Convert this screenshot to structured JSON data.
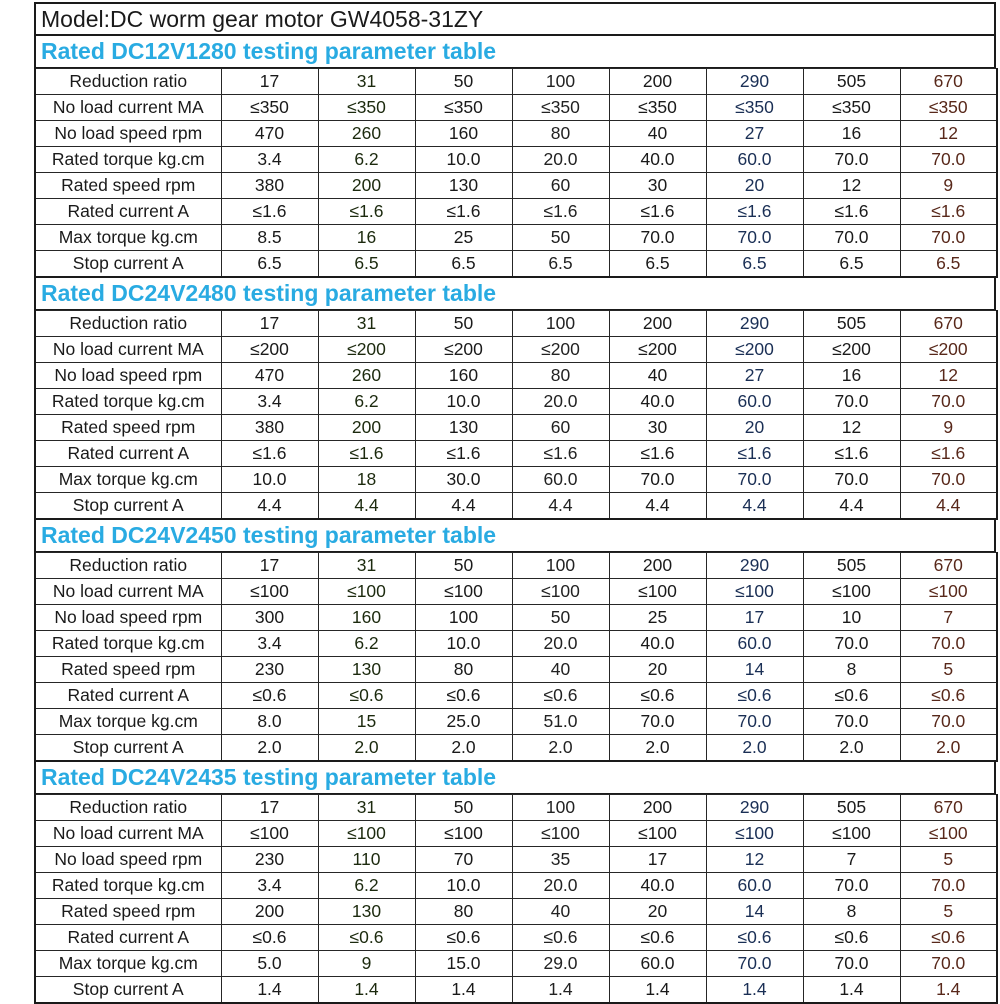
{
  "title": "Model:DC worm gear motor GW4058-31ZY",
  "colors": {
    "section_header_text": "#29abe2",
    "highlight_green": "#92d050",
    "highlight_yellow": "#ffff00",
    "highlight_blue": "#4f96d4",
    "highlight_salmon": "#f0a57c",
    "border": "#1a1a1a"
  },
  "column_highlights": [
    "none",
    "green",
    "none",
    "yellow",
    "none",
    "blue",
    "none",
    "salmon"
  ],
  "tables": [
    {
      "header": "Rated DC12V1280 testing parameter table",
      "rows": [
        {
          "label": "Reduction ratio",
          "values": [
            "17",
            "31",
            "50",
            "100",
            "200",
            "290",
            "505",
            "670"
          ]
        },
        {
          "label": "No load current MA",
          "values": [
            "≤350",
            "≤350",
            "≤350",
            "≤350",
            "≤350",
            "≤350",
            "≤350",
            "≤350"
          ]
        },
        {
          "label": "No load speed rpm",
          "values": [
            "470",
            "260",
            "160",
            "80",
            "40",
            "27",
            "16",
            "12"
          ]
        },
        {
          "label": "Rated torque kg.cm",
          "values": [
            "3.4",
            "6.2",
            "10.0",
            "20.0",
            "40.0",
            "60.0",
            "70.0",
            "70.0"
          ]
        },
        {
          "label": "Rated speed rpm",
          "values": [
            "380",
            "200",
            "130",
            "60",
            "30",
            "20",
            "12",
            "9"
          ]
        },
        {
          "label": "Rated current A",
          "values": [
            "≤1.6",
            "≤1.6",
            "≤1.6",
            "≤1.6",
            "≤1.6",
            "≤1.6",
            "≤1.6",
            "≤1.6"
          ]
        },
        {
          "label": "Max torque kg.cm",
          "values": [
            "8.5",
            "16",
            "25",
            "50",
            "70.0",
            "70.0",
            "70.0",
            "70.0"
          ]
        },
        {
          "label": "Stop current A",
          "values": [
            "6.5",
            "6.5",
            "6.5",
            "6.5",
            "6.5",
            "6.5",
            "6.5",
            "6.5"
          ]
        }
      ]
    },
    {
      "header": "Rated DC24V2480 testing parameter table",
      "rows": [
        {
          "label": "Reduction ratio",
          "values": [
            "17",
            "31",
            "50",
            "100",
            "200",
            "290",
            "505",
            "670"
          ]
        },
        {
          "label": "No load current MA",
          "values": [
            "≤200",
            "≤200",
            "≤200",
            "≤200",
            "≤200",
            "≤200",
            "≤200",
            "≤200"
          ]
        },
        {
          "label": "No load speed rpm",
          "values": [
            "470",
            "260",
            "160",
            "80",
            "40",
            "27",
            "16",
            "12"
          ]
        },
        {
          "label": "Rated torque kg.cm",
          "values": [
            "3.4",
            "6.2",
            "10.0",
            "20.0",
            "40.0",
            "60.0",
            "70.0",
            "70.0"
          ]
        },
        {
          "label": "Rated speed rpm",
          "values": [
            "380",
            "200",
            "130",
            "60",
            "30",
            "20",
            "12",
            "9"
          ]
        },
        {
          "label": "Rated current A",
          "values": [
            "≤1.6",
            "≤1.6",
            "≤1.6",
            "≤1.6",
            "≤1.6",
            "≤1.6",
            "≤1.6",
            "≤1.6"
          ]
        },
        {
          "label": "Max torque kg.cm",
          "values": [
            "10.0",
            "18",
            "30.0",
            "60.0",
            "70.0",
            "70.0",
            "70.0",
            "70.0"
          ]
        },
        {
          "label": "Stop current A",
          "values": [
            "4.4",
            "4.4",
            "4.4",
            "4.4",
            "4.4",
            "4.4",
            "4.4",
            "4.4"
          ]
        }
      ]
    },
    {
      "header": "Rated DC24V2450 testing parameter table",
      "rows": [
        {
          "label": "Reduction ratio",
          "values": [
            "17",
            "31",
            "50",
            "100",
            "200",
            "290",
            "505",
            "670"
          ]
        },
        {
          "label": "No load current MA",
          "values": [
            "≤100",
            "≤100",
            "≤100",
            "≤100",
            "≤100",
            "≤100",
            "≤100",
            "≤100"
          ]
        },
        {
          "label": "No load speed rpm",
          "values": [
            "300",
            "160",
            "100",
            "50",
            "25",
            "17",
            "10",
            "7"
          ]
        },
        {
          "label": "Rated torque kg.cm",
          "values": [
            "3.4",
            "6.2",
            "10.0",
            "20.0",
            "40.0",
            "60.0",
            "70.0",
            "70.0"
          ]
        },
        {
          "label": "Rated speed rpm",
          "values": [
            "230",
            "130",
            "80",
            "40",
            "20",
            "14",
            "8",
            "5"
          ]
        },
        {
          "label": "Rated current A",
          "values": [
            "≤0.6",
            "≤0.6",
            "≤0.6",
            "≤0.6",
            "≤0.6",
            "≤0.6",
            "≤0.6",
            "≤0.6"
          ]
        },
        {
          "label": "Max torque kg.cm",
          "values": [
            "8.0",
            "15",
            "25.0",
            "51.0",
            "70.0",
            "70.0",
            "70.0",
            "70.0"
          ]
        },
        {
          "label": "Stop current A",
          "values": [
            "2.0",
            "2.0",
            "2.0",
            "2.0",
            "2.0",
            "2.0",
            "2.0",
            "2.0"
          ]
        }
      ]
    },
    {
      "header": "Rated DC24V2435 testing parameter table",
      "rows": [
        {
          "label": "Reduction ratio",
          "values": [
            "17",
            "31",
            "50",
            "100",
            "200",
            "290",
            "505",
            "670"
          ]
        },
        {
          "label": "No load current MA",
          "values": [
            "≤100",
            "≤100",
            "≤100",
            "≤100",
            "≤100",
            "≤100",
            "≤100",
            "≤100"
          ]
        },
        {
          "label": "No load speed rpm",
          "values": [
            "230",
            "110",
            "70",
            "35",
            "17",
            "12",
            "7",
            "5"
          ]
        },
        {
          "label": "Rated torque kg.cm",
          "values": [
            "3.4",
            "6.2",
            "10.0",
            "20.0",
            "40.0",
            "60.0",
            "70.0",
            "70.0"
          ]
        },
        {
          "label": "Rated speed rpm",
          "values": [
            "200",
            "130",
            "80",
            "40",
            "20",
            "14",
            "8",
            "5"
          ]
        },
        {
          "label": "Rated current A",
          "values": [
            "≤0.6",
            "≤0.6",
            "≤0.6",
            "≤0.6",
            "≤0.6",
            "≤0.6",
            "≤0.6",
            "≤0.6"
          ]
        },
        {
          "label": "Max torque kg.cm",
          "values": [
            "5.0",
            "9",
            "15.0",
            "29.0",
            "60.0",
            "70.0",
            "70.0",
            "70.0"
          ]
        },
        {
          "label": "Stop current A",
          "values": [
            "1.4",
            "1.4",
            "1.4",
            "1.4",
            "1.4",
            "1.4",
            "1.4",
            "1.4"
          ]
        }
      ]
    }
  ]
}
